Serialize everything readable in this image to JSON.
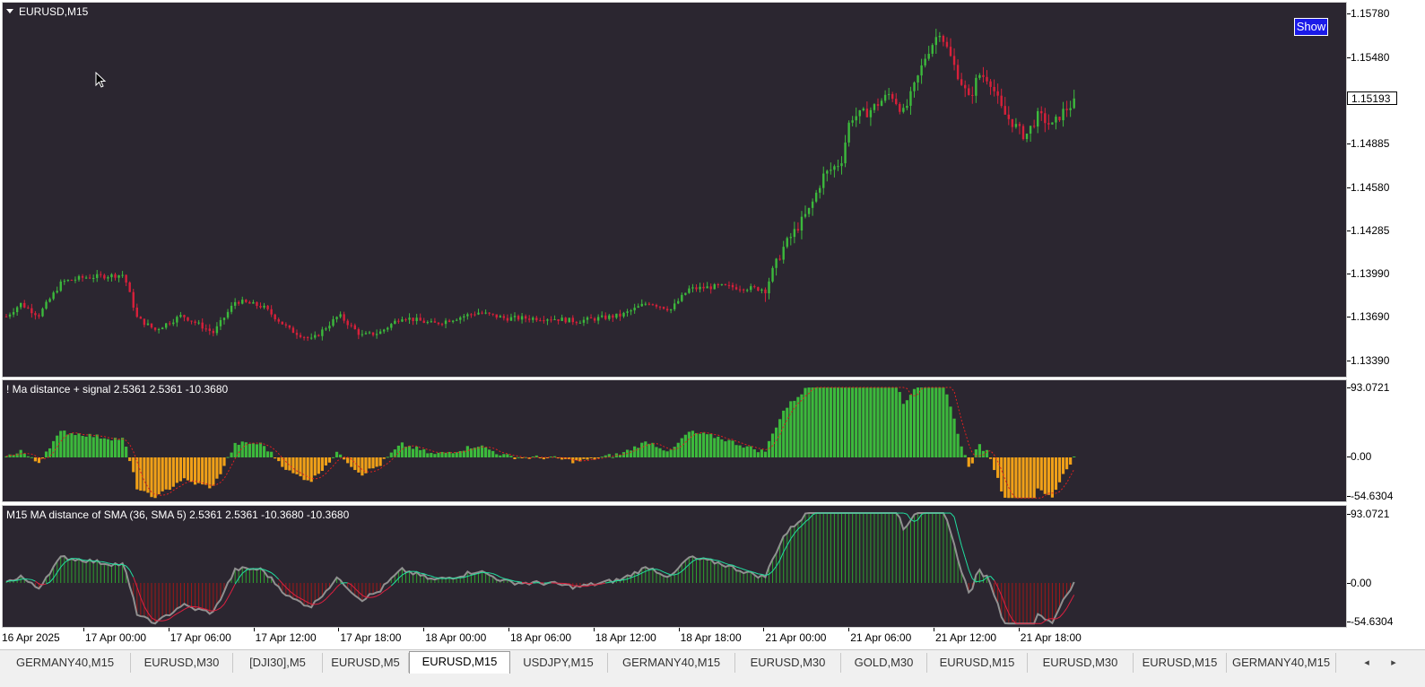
{
  "main_chart": {
    "symbol_label": "EURUSD,M15",
    "show_button_label": "Show",
    "current_price": "1.15193",
    "price_axis": [
      {
        "label": "1.15780",
        "value": 1.1578
      },
      {
        "label": "1.15480",
        "value": 1.1548
      },
      {
        "label": "1.14885",
        "value": 1.14885
      },
      {
        "label": "1.14580",
        "value": 1.1458
      },
      {
        "label": "1.14285",
        "value": 1.14285
      },
      {
        "label": "1.13990",
        "value": 1.1399
      },
      {
        "label": "1.13690",
        "value": 1.1369
      },
      {
        "label": "1.13390",
        "value": 1.1339
      }
    ],
    "colors": {
      "bull": "#3cb93c",
      "bear": "#d8203a",
      "background": "#2b2630"
    }
  },
  "indicator1": {
    "label": "! Ma distance + signal 2.5361 2.5361 -10.3680",
    "axis": [
      {
        "label": "93.0721",
        "value": 93.0721
      },
      {
        "label": "0.00",
        "value": 0
      },
      {
        "label": "-54.6304",
        "value": -54.6304
      }
    ],
    "colors": {
      "positive": "#3cb93c",
      "negative": "#f0a018",
      "signal": "#e02020"
    }
  },
  "indicator2": {
    "label": "M15 MA distance of  SMA (36,  SMA 5) 2.5361 2.5361 -10.3680 -10.3680",
    "axis": [
      {
        "label": "93.0721",
        "value": 93.0721
      },
      {
        "label": "0.00",
        "value": 0
      },
      {
        "label": "-54.6304",
        "value": -54.6304
      }
    ],
    "colors": {
      "positive": "#2ea02e",
      "negative": "#a01818",
      "line": "#909090",
      "signal_up": "#20e0a0",
      "signal_down": "#e02040"
    }
  },
  "time_axis": [
    "16 Apr 2025",
    "17 Apr 00:00",
    "17 Apr 06:00",
    "17 Apr 12:00",
    "17 Apr 18:00",
    "18 Apr 00:00",
    "18 Apr 06:00",
    "18 Apr 12:00",
    "18 Apr 18:00",
    "21 Apr 00:00",
    "21 Apr 06:00",
    "21 Apr 12:00",
    "21 Apr 18:00"
  ],
  "tabs": [
    {
      "label": "GERMANY40,M15",
      "active": false
    },
    {
      "label": "EURUSD,M30",
      "active": false
    },
    {
      "label": "[DJI30],M5",
      "active": false
    },
    {
      "label": "EURUSD,M5",
      "active": false
    },
    {
      "label": "EURUSD,M15",
      "active": true
    },
    {
      "label": "USDJPY,M15",
      "active": false
    },
    {
      "label": "GERMANY40,M15",
      "active": false
    },
    {
      "label": "EURUSD,M30",
      "active": false
    },
    {
      "label": "GOLD,M30",
      "active": false
    },
    {
      "label": "EURUSD,M15",
      "active": false
    },
    {
      "label": "EURUSD,M30",
      "active": false
    },
    {
      "label": "EURUSD,M15",
      "active": false
    },
    {
      "label": "GERMANY40,M15",
      "active": false
    }
  ],
  "tab_scroll": {
    "left_icon": "◂",
    "right_icon": "▸"
  }
}
